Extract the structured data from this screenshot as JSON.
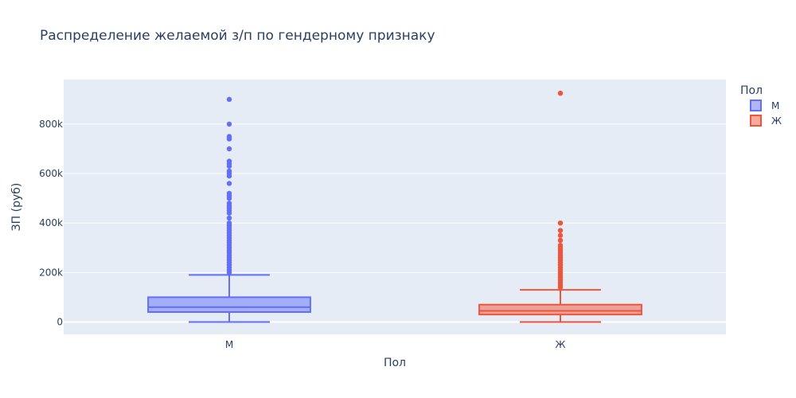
{
  "chart_data": {
    "type": "box",
    "title": "Распределение желаемой з/п по гендерному признаку",
    "xlabel": "Пол",
    "ylabel": "ЗП (руб)",
    "ylim": [
      -50000,
      980000
    ],
    "yticks": [
      0,
      200000,
      400000,
      600000,
      800000
    ],
    "ytick_labels": [
      "0",
      "200k",
      "400k",
      "600k",
      "800k"
    ],
    "categories": [
      "М",
      "Ж"
    ],
    "legend": {
      "title": "Пол",
      "position": "top-right"
    },
    "grid": true,
    "series": [
      {
        "name": "М",
        "category": "М",
        "color": "#636efa",
        "min": 0,
        "q1": 40000,
        "median": 60000,
        "q3": 100000,
        "upper_fence": 190000,
        "outliers": [
          900000,
          800000,
          750000,
          740000,
          700000,
          650000,
          640000,
          630000,
          610000,
          600000,
          590000,
          560000,
          520000,
          510000,
          500000,
          480000,
          470000,
          460000,
          450000,
          440000,
          420000,
          400000,
          390000,
          380000,
          370000,
          360000,
          350000,
          340000,
          330000,
          320000,
          310000,
          300000,
          290000,
          280000,
          270000,
          260000,
          250000,
          240000,
          230000,
          220000,
          210000,
          200000
        ]
      },
      {
        "name": "Ж",
        "category": "Ж",
        "color": "#ef553b",
        "min": 0,
        "q1": 30000,
        "median": 45000,
        "q3": 70000,
        "upper_fence": 130000,
        "outliers": [
          925000,
          400000,
          370000,
          350000,
          330000,
          310000,
          300000,
          290000,
          280000,
          270000,
          260000,
          250000,
          240000,
          230000,
          220000,
          210000,
          200000,
          190000,
          180000,
          170000,
          160000,
          150000,
          140000
        ]
      }
    ]
  }
}
